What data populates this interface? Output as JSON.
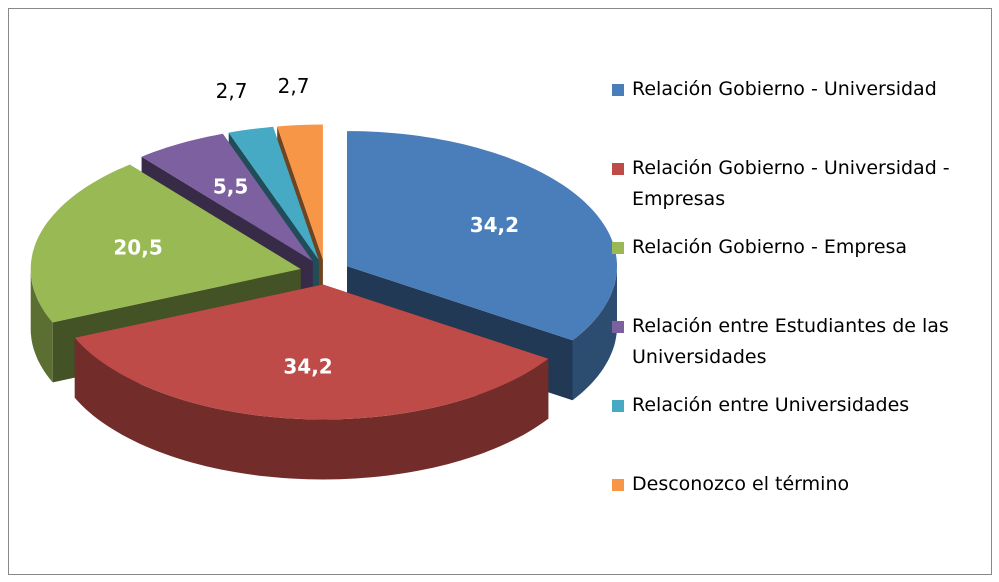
{
  "chart_data": {
    "type": "pie",
    "categories": [
      "Relación Gobierno - Universidad",
      "Relación Gobierno - Universidad - Empresas",
      "Relación Gobierno - Empresa",
      "Relación entre Estudiantes de las Universidades",
      "Relación entre Universidades",
      "Desconozco el término"
    ],
    "values": [
      34.2,
      34.2,
      20.5,
      5.5,
      2.7,
      2.7
    ],
    "value_labels": [
      "34,2",
      "34,2",
      "20,5",
      "5,5",
      "2,7",
      "2,7"
    ],
    "colors": [
      "#4a7ebb",
      "#be4b48",
      "#98b954",
      "#7d60a0",
      "#46aac5",
      "#f79646"
    ],
    "legend": "right"
  }
}
